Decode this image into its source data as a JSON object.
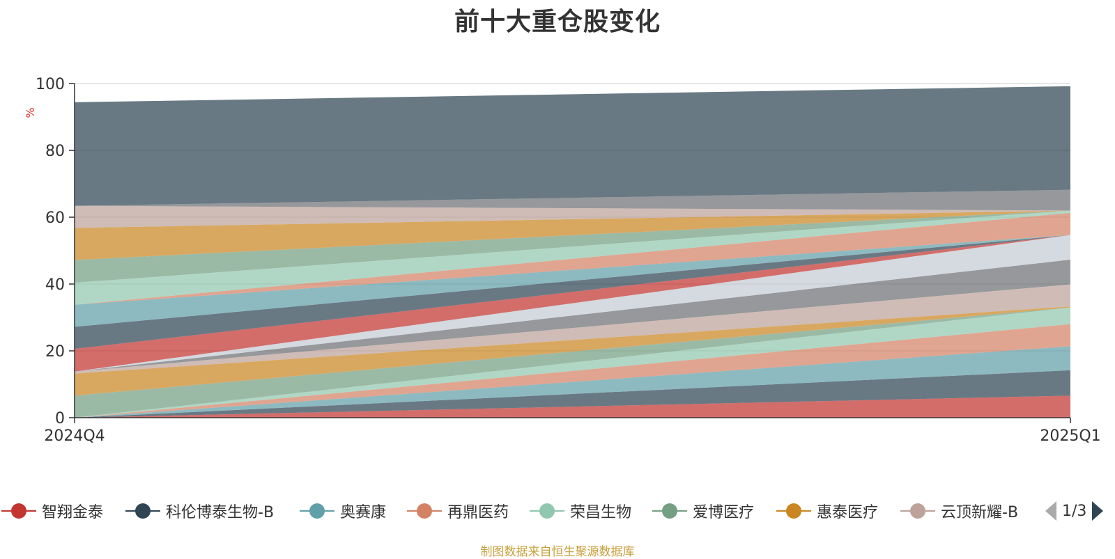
{
  "chart_data": {
    "type": "area",
    "title": "前十大重仓股变化",
    "ylabel": "%",
    "ylim": [
      0,
      100
    ],
    "y_ticks": [
      0,
      20,
      40,
      60,
      80,
      100
    ],
    "categories": [
      "2024Q4",
      "2025Q1"
    ],
    "grid": true,
    "legend_position": "bottom",
    "stacking": "stacked area (2024Q4 holdings bottom-to-top, then 2025Q1 holdings)",
    "series": [
      {
        "name": "智翔金泰",
        "color": "#c23531",
        "values": [
          0,
          6.6
        ]
      },
      {
        "name": "科伦博泰生物-B",
        "color": "#2f4554",
        "values": [
          0,
          7.6
        ]
      },
      {
        "name": "奥赛康",
        "color": "#61a0a8",
        "values": [
          0,
          7.2
        ]
      },
      {
        "name": "再鼎医药",
        "color": "#d48265",
        "values": [
          0,
          6.6
        ]
      },
      {
        "name": "荣昌生物",
        "color": "#91c7ae",
        "values": [
          0,
          5.0
        ]
      },
      {
        "name": "爱博医疗",
        "color": "#749f83",
        "values": [
          6.6,
          0
        ]
      },
      {
        "name": "惠泰医疗",
        "color": "#ca8622",
        "values": [
          6.6,
          0.3
        ]
      },
      {
        "name": "云顶新耀-B",
        "color": "#bda29a",
        "values": [
          0.6,
          6.6
        ]
      },
      {
        "name": "",
        "color": "#6e7074",
        "values": [
          0,
          7.4
        ]
      },
      {
        "name": "",
        "color": "#c4ccd3",
        "values": [
          0,
          7.4
        ]
      },
      {
        "name": "",
        "color": "#c23531",
        "values": [
          6.8,
          0
        ]
      },
      {
        "name": "",
        "color": "#2f4554",
        "values": [
          6.6,
          0
        ]
      },
      {
        "name": "",
        "color": "#61a0a8",
        "values": [
          6.6,
          0
        ]
      },
      {
        "name": "",
        "color": "#d48265",
        "values": [
          0,
          6.6
        ]
      },
      {
        "name": "",
        "color": "#91c7ae",
        "values": [
          6.6,
          0.7
        ]
      },
      {
        "name": "",
        "color": "#749f83",
        "values": [
          6.8,
          0
        ]
      },
      {
        "name": "",
        "color": "#ca8622",
        "values": [
          9.6,
          0
        ]
      },
      {
        "name": "",
        "color": "#bda29a",
        "values": [
          6.6,
          0
        ]
      },
      {
        "name": "",
        "color": "#6e7074",
        "values": [
          0,
          6.2
        ]
      },
      {
        "name": "",
        "color": "#2f4554",
        "values": [
          31.0,
          31.0
        ]
      }
    ]
  },
  "legend": {
    "items": [
      {
        "label": "智翔金泰",
        "color": "#c23531"
      },
      {
        "label": "科伦博泰生物-B",
        "color": "#2f4554"
      },
      {
        "label": "奥赛康",
        "color": "#61a0a8"
      },
      {
        "label": "再鼎医药",
        "color": "#d48265"
      },
      {
        "label": "荣昌生物",
        "color": "#91c7ae"
      },
      {
        "label": "爱博医疗",
        "color": "#749f83"
      },
      {
        "label": "惠泰医疗",
        "color": "#ca8622"
      },
      {
        "label": "云顶新耀-B",
        "color": "#bda29a"
      }
    ],
    "page_indicator": "1/3"
  },
  "source_text": "制图数据来自恒生聚源数据库"
}
